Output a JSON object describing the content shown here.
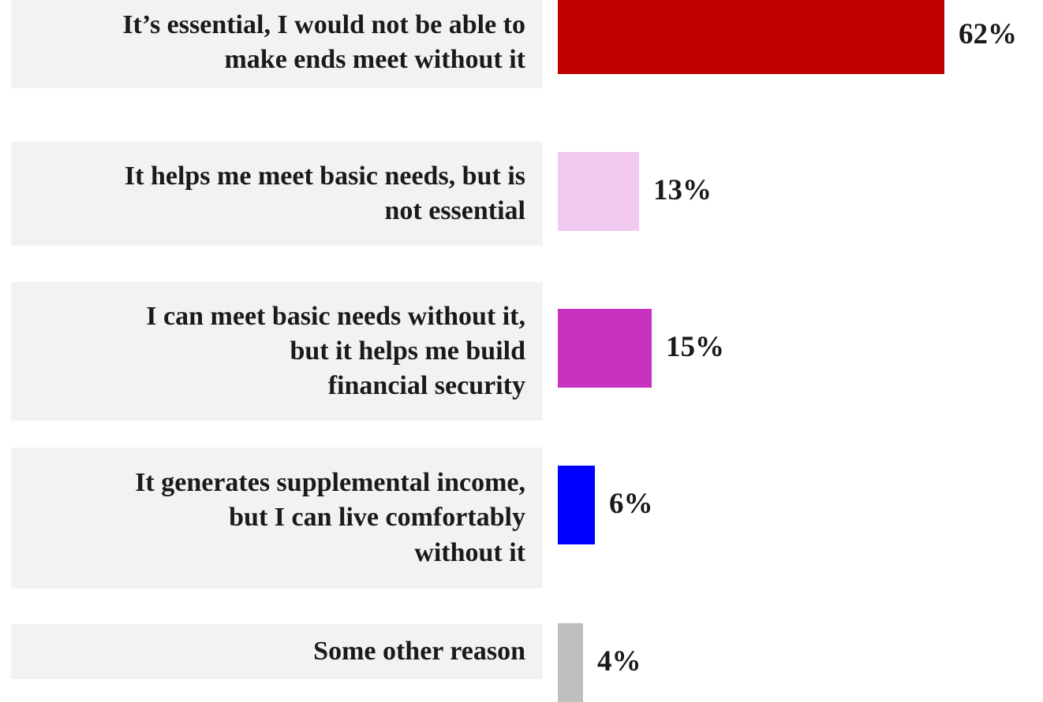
{
  "chart_data": {
    "type": "bar",
    "orientation": "horizontal",
    "categories": [
      "It’s essential, I would not be able to\nmake ends meet without it",
      "It helps me meet basic needs, but is\nnot essential",
      "I can meet basic needs without it,\nbut it helps me build\nfinancial security",
      "It generates supplemental income,\nbut I can live comfortably\nwithout it",
      "Some other reason"
    ],
    "values": [
      62,
      13,
      15,
      6,
      4
    ],
    "value_labels": [
      "62%",
      "13%",
      "15%",
      "6%",
      "4%"
    ],
    "colors": [
      "#c00000",
      "#f0c8f0",
      "#c832c0",
      "#0000ff",
      "#bfbfbf"
    ],
    "xlim": [
      0,
      62
    ],
    "grid": false,
    "legend": "none"
  }
}
